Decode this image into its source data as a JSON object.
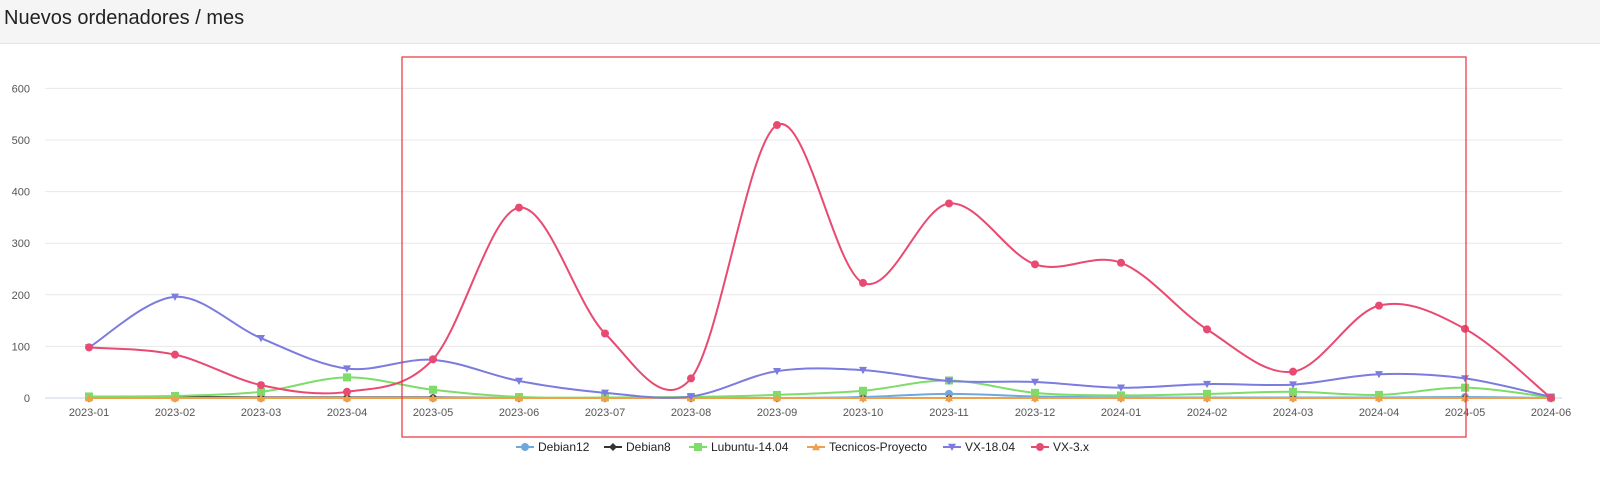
{
  "page": {
    "title": "Nuevos ordenadores / mes"
  },
  "colors": {
    "grid": "#e8e8e8",
    "axis": "#c9d3e8",
    "highlight_box": "#e8333b",
    "header_bg": "#f5f5f5"
  },
  "chart_data": {
    "type": "line",
    "title": "",
    "xlabel": "",
    "ylabel": "",
    "ylim": [
      0,
      650
    ],
    "yticks": [
      0,
      100,
      200,
      300,
      400,
      500,
      600
    ],
    "grid": true,
    "smooth": true,
    "legend_position": "bottom",
    "categories": [
      "2023-01",
      "2023-02",
      "2023-03",
      "2023-04",
      "2023-05",
      "2023-06",
      "2023-07",
      "2023-08",
      "2023-09",
      "2023-10",
      "2023-11",
      "2023-12",
      "2024-01",
      "2024-02",
      "2024-03",
      "2024-04",
      "2024-05",
      "2024-06"
    ],
    "series": [
      {
        "name": "Debian12",
        "color": "#6fa8dc",
        "marker": "circle",
        "values": [
          0,
          0,
          0,
          0,
          0,
          0,
          0,
          0,
          0,
          2,
          8,
          3,
          1,
          1,
          1,
          1,
          2,
          0
        ]
      },
      {
        "name": "Debian8",
        "color": "#333333",
        "marker": "diamond",
        "values": [
          1,
          2,
          1,
          1,
          1,
          0,
          0,
          0,
          0,
          0,
          0,
          0,
          0,
          0,
          0,
          0,
          0,
          0
        ]
      },
      {
        "name": "Lubuntu-14.04",
        "color": "#7ddc6a",
        "marker": "square",
        "values": [
          3,
          4,
          12,
          40,
          16,
          2,
          1,
          2,
          6,
          14,
          34,
          10,
          5,
          8,
          12,
          6,
          20,
          1
        ]
      },
      {
        "name": "Tecnicos-Proyecto",
        "color": "#f0a04b",
        "marker": "triangle",
        "values": [
          0,
          0,
          0,
          0,
          0,
          0,
          0,
          0,
          0,
          0,
          0,
          0,
          0,
          0,
          0,
          0,
          0,
          0
        ]
      },
      {
        "name": "VX-18.04",
        "color": "#7b7be0",
        "marker": "triangle-down",
        "values": [
          98,
          196,
          116,
          57,
          74,
          33,
          10,
          3,
          52,
          54,
          33,
          31,
          20,
          27,
          26,
          46,
          38,
          2
        ]
      },
      {
        "name": "VX-3.x",
        "color": "#e84a72",
        "marker": "circle",
        "values": [
          98,
          84,
          25,
          12,
          75,
          369,
          125,
          38,
          529,
          223,
          377,
          259,
          262,
          133,
          51,
          179,
          134,
          0
        ]
      }
    ],
    "highlight_range": [
      "2023-05",
      "2024-05"
    ]
  }
}
